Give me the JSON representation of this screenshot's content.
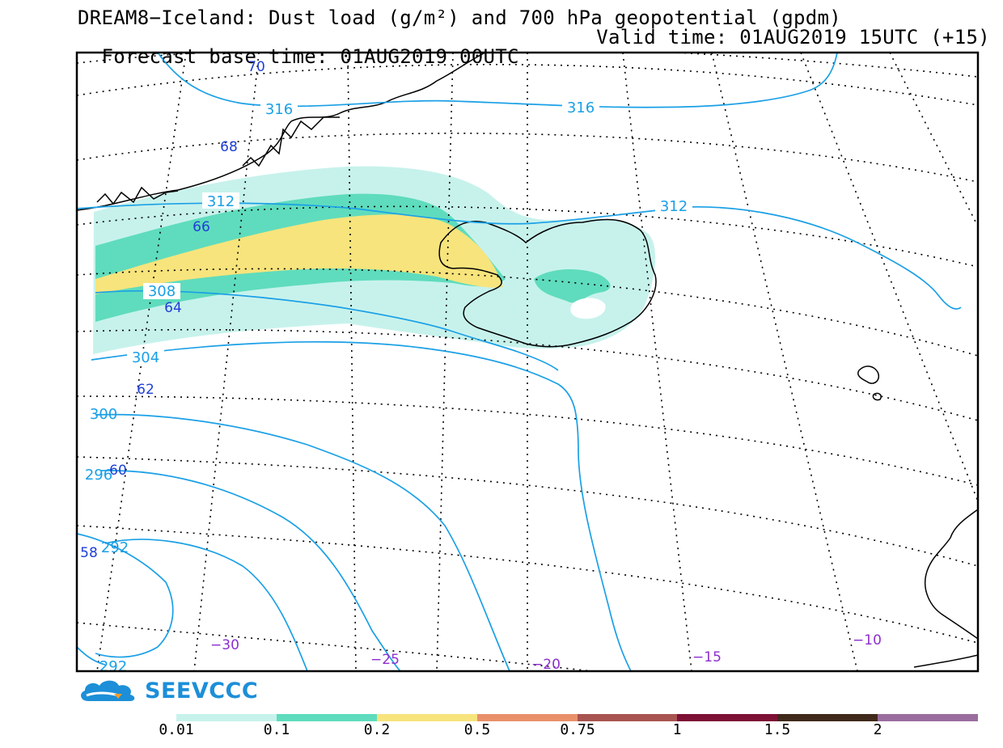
{
  "title": {
    "line1": "DREAM8−Iceland: Dust load (g/m²) and 700 hPa geopotential (gpdm)",
    "forecast_base": "Forecast base time: 01AUG2019 00UTC",
    "valid_time": "Valid time: 01AUG2019 15UTC (+15)"
  },
  "contour_labels": {
    "c316a": "316",
    "c316b": "316",
    "c312a": "312",
    "c312b": "312",
    "c308": "308",
    "c304": "304",
    "c300": "300",
    "c296": "296",
    "c292": "292",
    "c292b": "292"
  },
  "latitude_labels": {
    "l70": "70",
    "l68": "68",
    "l66": "66",
    "l64": "64",
    "l62": "62",
    "l60": "60",
    "l58": "58"
  },
  "longitude_labels": {
    "m30": "−30",
    "m25": "−25",
    "m20": "−20",
    "m15": "−15",
    "m10": "−10"
  },
  "logo": {
    "text": "SEEVCCC",
    "icon": "cloud-logo-icon"
  },
  "legend": {
    "ticks": [
      "0.01",
      "0.1",
      "0.2",
      "0.5",
      "0.75",
      "1",
      "1.5",
      "2"
    ],
    "colors": [
      "#c7f2ec",
      "#5fdcbd",
      "#f7e47c",
      "#e9906b",
      "#a85450",
      "#7d1035",
      "#40291a",
      "#9a6d9e"
    ]
  },
  "colors": {
    "contour": "#1aa0e6",
    "lat_label": "#1f3fd6",
    "lon_label": "#8d2fcf"
  }
}
